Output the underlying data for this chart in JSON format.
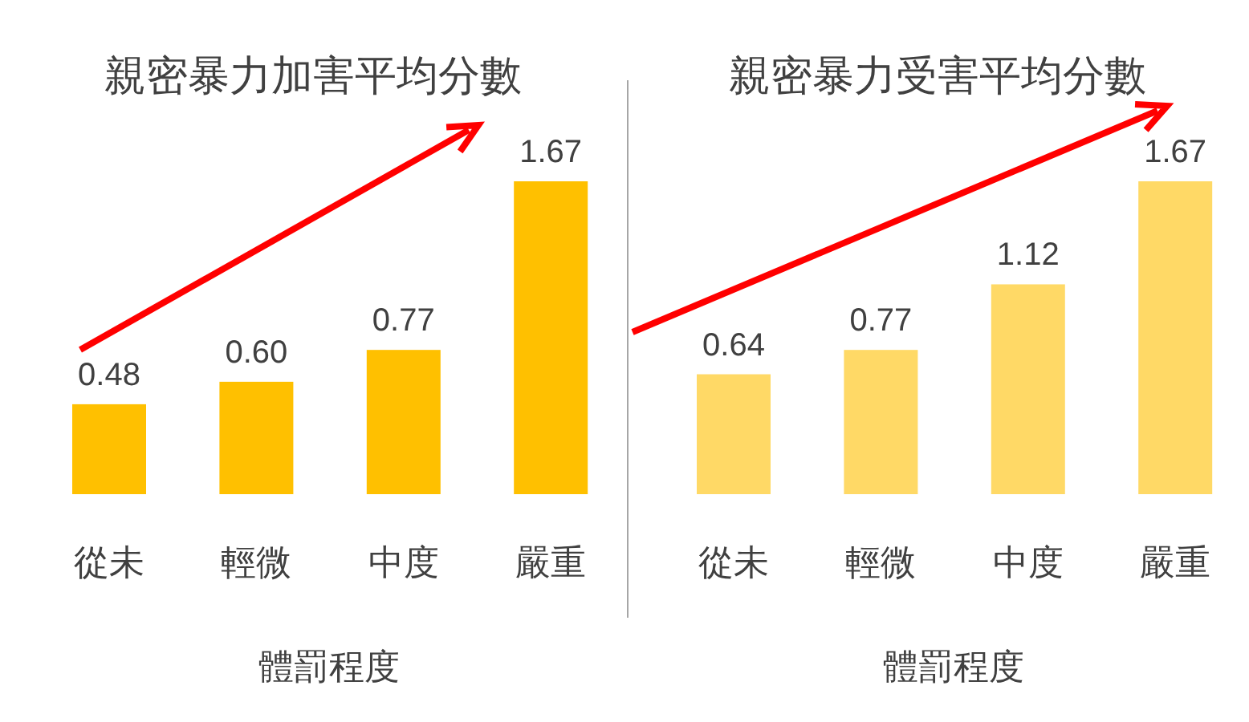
{
  "chart_data": [
    {
      "type": "bar",
      "title": "親密暴力加害平均分數",
      "xlabel": "體罰程度",
      "categories": [
        "從未",
        "輕微",
        "中度",
        "嚴重"
      ],
      "values": [
        0.48,
        0.6,
        0.77,
        1.67
      ],
      "color": "#ffc000",
      "value_labels": [
        "0.48",
        "0.60",
        "0.77",
        "1.67"
      ]
    },
    {
      "type": "bar",
      "title": "親密暴力受害平均分數",
      "xlabel": "體罰程度",
      "categories": [
        "從未",
        "輕微",
        "中度",
        "嚴重"
      ],
      "values": [
        0.64,
        0.77,
        1.12,
        1.67
      ],
      "color": "#ffd966",
      "value_labels": [
        "0.64",
        "0.77",
        "1.12",
        "1.67"
      ]
    }
  ]
}
